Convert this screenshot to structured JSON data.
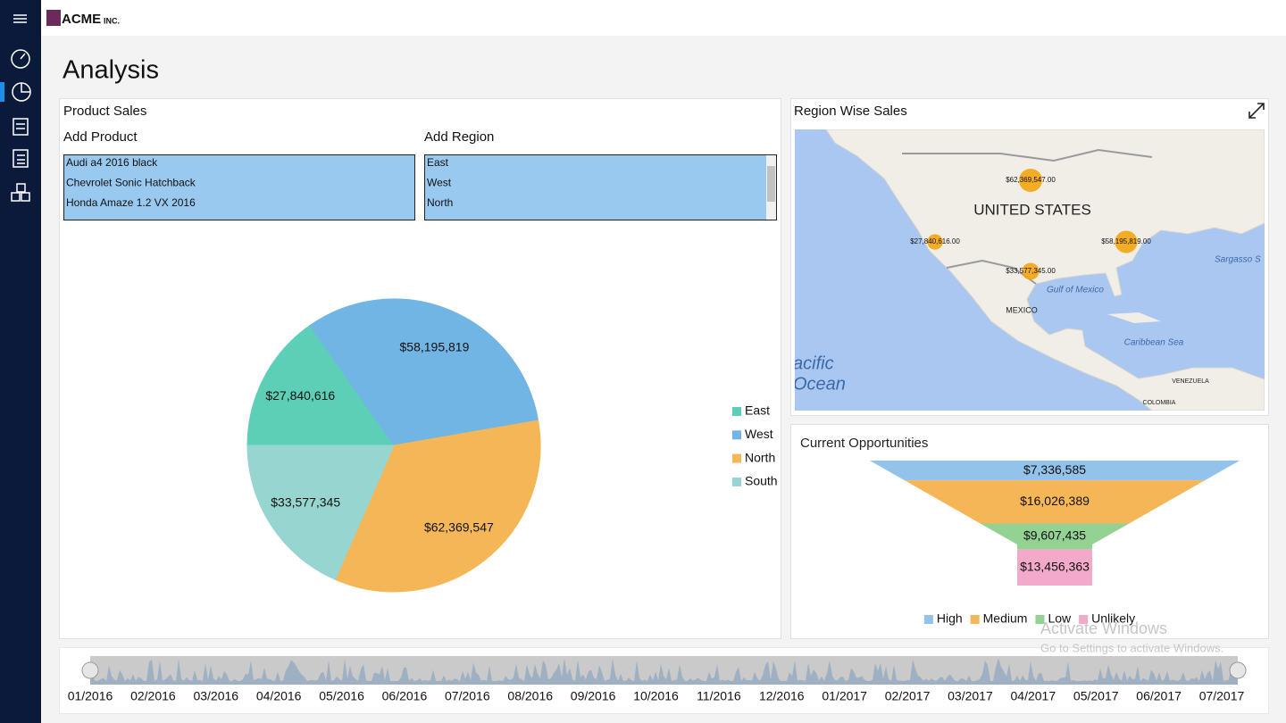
{
  "header": {
    "logo": "ACME",
    "logo_suffix": "INC."
  },
  "page_title": "Analysis",
  "product_sales": {
    "title": "Product Sales",
    "add_product": "Add Product",
    "products": [
      "Audi a4 2016 black",
      "Chevrolet Sonic Hatchback",
      "Honda Amaze 1.2 VX 2016"
    ],
    "add_region": "Add Region",
    "regions": [
      "East",
      "West",
      "North"
    ]
  },
  "region_map": {
    "title": "Region Wise Sales",
    "labels": [
      "UNITED STATES",
      "MEXICO",
      "Gulf of Mexico",
      "Caribbean Sea",
      "Sargasso S",
      "acific",
      "Ocean",
      "VENEZUELA",
      "COLOMBIA"
    ],
    "bubbles": [
      {
        "value": 62369547,
        "label": "$62,369,547.00"
      },
      {
        "value": 27840616,
        "label": "$27,840,616.00"
      },
      {
        "value": 58195819,
        "label": "$58,195,819.00"
      },
      {
        "value": 33577345,
        "label": "$33,577,345.00"
      }
    ]
  },
  "chart_data": [
    {
      "type": "pie",
      "categories": [
        "East",
        "West",
        "North",
        "South"
      ],
      "values": [
        27840616,
        58195819,
        62369547,
        33577345
      ],
      "value_labels": [
        "$27,840,616",
        "$58,195,819",
        "$62,369,547",
        "$33,577,345"
      ],
      "colors": [
        "#5dcfb6",
        "#71b5e5",
        "#f5b657",
        "#97d5d1"
      ],
      "legend": "right"
    },
    {
      "type": "funnel",
      "title": "Current Opportunities",
      "categories": [
        "High",
        "Medium",
        "Low",
        "Unlikely"
      ],
      "values": [
        7336585,
        16026389,
        9607435,
        13456363
      ],
      "value_labels": [
        "$7,336,585",
        "$16,026,389",
        "$9,607,435",
        "$13,456,363"
      ],
      "colors": [
        "#93c2ea",
        "#f5b657",
        "#93d293",
        "#f3a9c9"
      ],
      "legend": "bottom"
    }
  ],
  "timeline": {
    "labels": [
      "01/2016",
      "02/2016",
      "03/2016",
      "04/2016",
      "05/2016",
      "06/2016",
      "07/2016",
      "08/2016",
      "09/2016",
      "10/2016",
      "11/2016",
      "12/2016",
      "01/2017",
      "02/2017",
      "03/2017",
      "04/2017",
      "05/2017",
      "06/2017",
      "07/2017"
    ]
  },
  "watermark": {
    "title": "Activate Windows",
    "subtitle": "Go to Settings to activate Windows."
  }
}
